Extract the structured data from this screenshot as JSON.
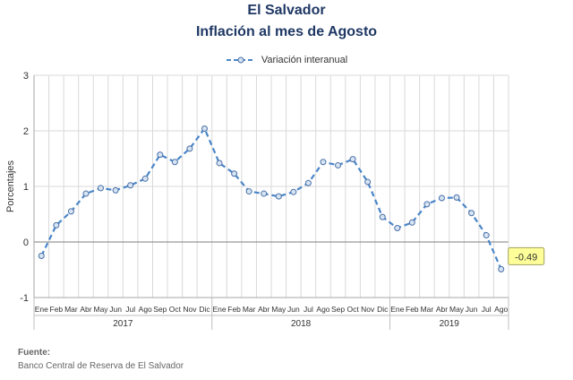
{
  "chart_data": {
    "type": "line",
    "title": "El Salvador",
    "subtitle": "Inflación al mes de Agosto",
    "ylabel": "Porcentajes",
    "ylim": [
      -1,
      3
    ],
    "yticks": [
      "-1",
      "0",
      "1",
      "2",
      "3"
    ],
    "grid": true,
    "legend_position": "top-center",
    "years": [
      {
        "label": "2017",
        "months": [
          "Ene",
          "Feb",
          "Mar",
          "Abr",
          "May",
          "Jun",
          "Jul",
          "Ago",
          "Sep",
          "Oct",
          "Nov",
          "Dic"
        ]
      },
      {
        "label": "2018",
        "months": [
          "Ene",
          "Feb",
          "Mar",
          "Abr",
          "May",
          "Jun",
          "Jul",
          "Ago",
          "Sep",
          "Oct",
          "Nov",
          "Dic"
        ]
      },
      {
        "label": "2019",
        "months": [
          "Ene",
          "Feb",
          "Mar",
          "Abr",
          "May",
          "Jun",
          "Jul",
          "Ago"
        ]
      }
    ],
    "series": [
      {
        "name": "Variación interanual",
        "color": "#4a86c8",
        "values": [
          -0.25,
          0.3,
          0.55,
          0.87,
          0.97,
          0.93,
          1.02,
          1.14,
          1.57,
          1.44,
          1.68,
          2.04,
          1.42,
          1.23,
          0.91,
          0.87,
          0.82,
          0.9,
          1.06,
          1.44,
          1.38,
          1.49,
          1.08,
          0.45,
          0.25,
          0.35,
          0.68,
          0.79,
          0.8,
          0.52,
          0.12,
          -0.49
        ]
      }
    ],
    "callout": {
      "text": "-0.49",
      "fill": "#ffff99",
      "border": "#a0a060"
    }
  },
  "footer": {
    "source_label": "Fuente:",
    "source_text": "Banco Central de Reserva de El Salvador"
  }
}
